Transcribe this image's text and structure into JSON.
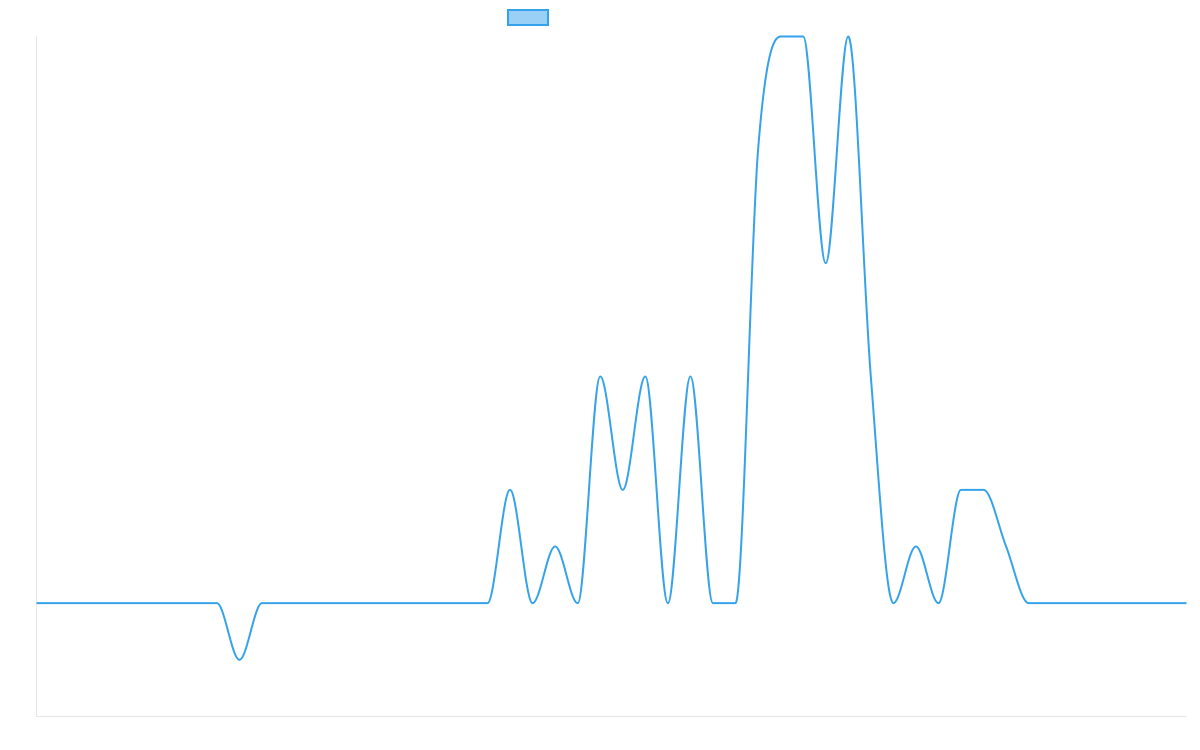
{
  "chart_data": {
    "type": "line",
    "title": "",
    "xlabel": "",
    "ylabel": "",
    "x": [
      0,
      4,
      8,
      9,
      10,
      11,
      12,
      13,
      14,
      15,
      20,
      21,
      22,
      23,
      24,
      25,
      26,
      27,
      28,
      29,
      30,
      31,
      32,
      33,
      34,
      35,
      36,
      37,
      38,
      39,
      40,
      41,
      42,
      43,
      44,
      45,
      46,
      47,
      48,
      49,
      50,
      51
    ],
    "series": [
      {
        "name": "",
        "color": "#36a2eb",
        "fill": "#9ad0f5",
        "values": [
          0,
          0,
          0,
          -1,
          0,
          0,
          0,
          0,
          0,
          0,
          0,
          2,
          0,
          1,
          0,
          4,
          2,
          4,
          0,
          4,
          0,
          0,
          8,
          10,
          10,
          6,
          10,
          4,
          0,
          1,
          0,
          2,
          2,
          1,
          0,
          0,
          0,
          0,
          0,
          0,
          0,
          0
        ]
      }
    ],
    "ylim": [
      -2,
      10
    ],
    "xlim": [
      0,
      51
    ],
    "grid": false,
    "legend": {
      "position": "top"
    }
  }
}
